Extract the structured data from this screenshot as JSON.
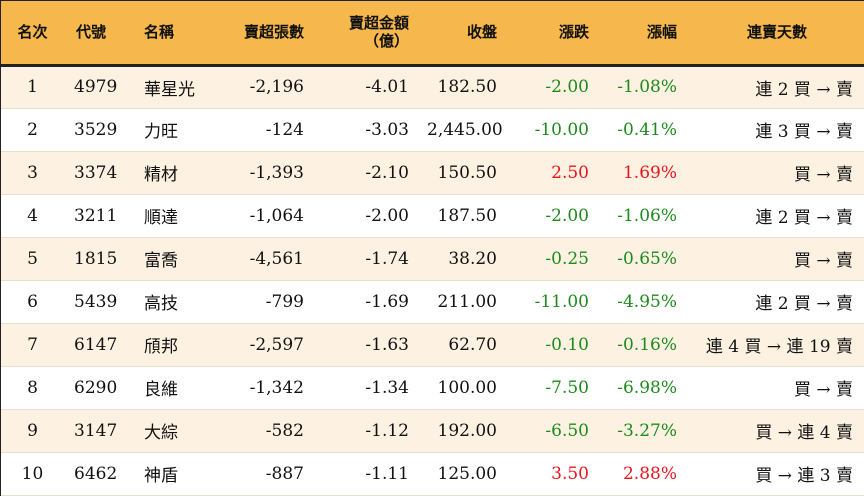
{
  "headers": {
    "rank": "名次",
    "code": "代號",
    "name": "名稱",
    "oversold_shares": "賣超張數",
    "oversold_amount_line1": "賣超金額",
    "oversold_amount_line2": "（億）",
    "close": "收盤",
    "change": "漲跌",
    "change_pct": "漲幅",
    "streak": "連賣天數"
  },
  "colors": {
    "header_bg": "#f6b84c",
    "odd_row_bg": "#fdf2e2",
    "up": "#e8141e",
    "down": "#1e8a1e"
  },
  "rows": [
    {
      "rank": "1",
      "code": "4979",
      "name": "華星光",
      "shares": "-2,196",
      "amount": "-4.01",
      "close": "182.50",
      "change": "-2.00",
      "pct": "-1.08%",
      "dir": "down",
      "streak": "連 2 買 → 賣"
    },
    {
      "rank": "2",
      "code": "3529",
      "name": "力旺",
      "shares": "-124",
      "amount": "-3.03",
      "close": "2,445.00",
      "change": "-10.00",
      "pct": "-0.41%",
      "dir": "down",
      "streak": "連 3 買 → 賣"
    },
    {
      "rank": "3",
      "code": "3374",
      "name": "精材",
      "shares": "-1,393",
      "amount": "-2.10",
      "close": "150.50",
      "change": "2.50",
      "pct": "1.69%",
      "dir": "up",
      "streak": "買 → 賣"
    },
    {
      "rank": "4",
      "code": "3211",
      "name": "順達",
      "shares": "-1,064",
      "amount": "-2.00",
      "close": "187.50",
      "change": "-2.00",
      "pct": "-1.06%",
      "dir": "down",
      "streak": "連 2 買 → 賣"
    },
    {
      "rank": "5",
      "code": "1815",
      "name": "富喬",
      "shares": "-4,561",
      "amount": "-1.74",
      "close": "38.20",
      "change": "-0.25",
      "pct": "-0.65%",
      "dir": "down",
      "streak": "買 → 賣"
    },
    {
      "rank": "6",
      "code": "5439",
      "name": "高技",
      "shares": "-799",
      "amount": "-1.69",
      "close": "211.00",
      "change": "-11.00",
      "pct": "-4.95%",
      "dir": "down",
      "streak": "連 2 買 → 賣"
    },
    {
      "rank": "7",
      "code": "6147",
      "name": "頎邦",
      "shares": "-2,597",
      "amount": "-1.63",
      "close": "62.70",
      "change": "-0.10",
      "pct": "-0.16%",
      "dir": "down",
      "streak": "連 4 買 → 連 19 賣"
    },
    {
      "rank": "8",
      "code": "6290",
      "name": "良維",
      "shares": "-1,342",
      "amount": "-1.34",
      "close": "100.00",
      "change": "-7.50",
      "pct": "-6.98%",
      "dir": "down",
      "streak": "買 → 賣"
    },
    {
      "rank": "9",
      "code": "3147",
      "name": "大綜",
      "shares": "-582",
      "amount": "-1.12",
      "close": "192.00",
      "change": "-6.50",
      "pct": "-3.27%",
      "dir": "down",
      "streak": "買 → 連 4 賣"
    },
    {
      "rank": "10",
      "code": "6462",
      "name": "神盾",
      "shares": "-887",
      "amount": "-1.11",
      "close": "125.00",
      "change": "3.50",
      "pct": "2.88%",
      "dir": "up",
      "streak": "買 → 連 3 賣"
    }
  ]
}
